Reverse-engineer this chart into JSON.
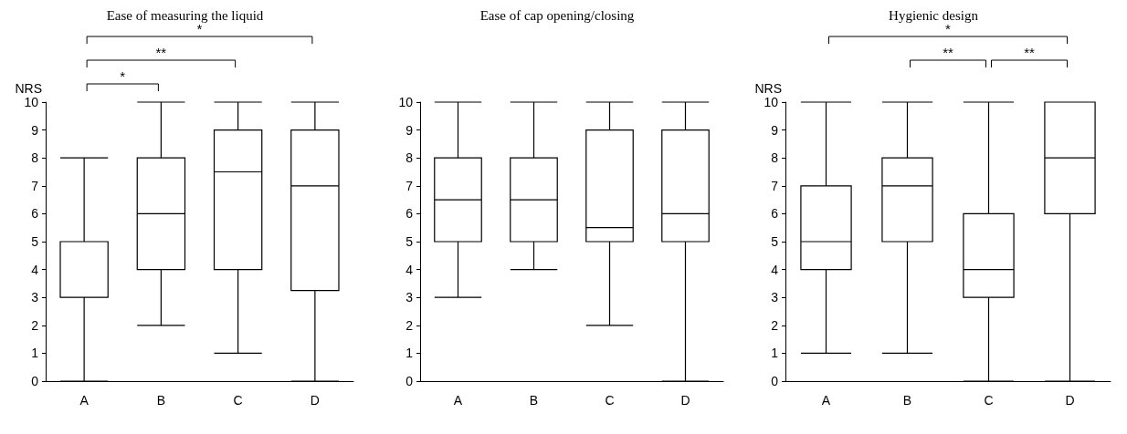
{
  "chart_data": [
    {
      "type": "box",
      "title": "Ease of measuring the liquid",
      "ylabel": "NRS",
      "categories": [
        "A",
        "B",
        "C",
        "D"
      ],
      "boxes": [
        {
          "low": 0,
          "q1": 3,
          "median": 3,
          "q3": 5,
          "high": 8
        },
        {
          "low": 2,
          "q1": 4,
          "median": 6,
          "q3": 8,
          "high": 10
        },
        {
          "low": 1,
          "q1": 4,
          "median": 7.5,
          "q3": 9,
          "high": 10
        },
        {
          "low": 0,
          "q1": 3.25,
          "median": 7,
          "q3": 9,
          "high": 10
        }
      ],
      "ylim": [
        0,
        10
      ],
      "yticks": [
        0,
        1,
        2,
        3,
        4,
        5,
        6,
        7,
        8,
        9,
        10
      ],
      "annotations": [
        "*",
        "**",
        "*"
      ]
    },
    {
      "type": "box",
      "title": "Ease of cap opening/closing",
      "categories": [
        "A",
        "B",
        "C",
        "D"
      ],
      "boxes": [
        {
          "low": 3,
          "q1": 5,
          "median": 6.5,
          "q3": 8,
          "high": 10
        },
        {
          "low": 4,
          "q1": 5,
          "median": 6.5,
          "q3": 8,
          "high": 10
        },
        {
          "low": 2,
          "q1": 5,
          "median": 5.5,
          "q3": 9,
          "high": 10
        },
        {
          "low": 0,
          "q1": 5,
          "median": 6,
          "q3": 9,
          "high": 10
        }
      ],
      "ylim": [
        0,
        10
      ],
      "yticks": [
        0,
        1,
        2,
        3,
        4,
        5,
        6,
        7,
        8,
        9,
        10
      ]
    },
    {
      "type": "box",
      "title": "Hygienic design",
      "ylabel": "NRS",
      "categories": [
        "A",
        "B",
        "C",
        "D"
      ],
      "boxes": [
        {
          "low": 1,
          "q1": 4,
          "median": 5,
          "q3": 7,
          "high": 10
        },
        {
          "low": 1,
          "q1": 5,
          "median": 7,
          "q3": 8,
          "high": 10
        },
        {
          "low": 0,
          "q1": 3,
          "median": 4,
          "q3": 6,
          "high": 10
        },
        {
          "low": 0,
          "q1": 6,
          "median": 8,
          "q3": 10,
          "high": 10
        }
      ],
      "ylim": [
        0,
        10
      ],
      "yticks": [
        0,
        1,
        2,
        3,
        4,
        5,
        6,
        7,
        8,
        9,
        10
      ],
      "annotations": [
        "*",
        "**",
        "**"
      ]
    }
  ]
}
